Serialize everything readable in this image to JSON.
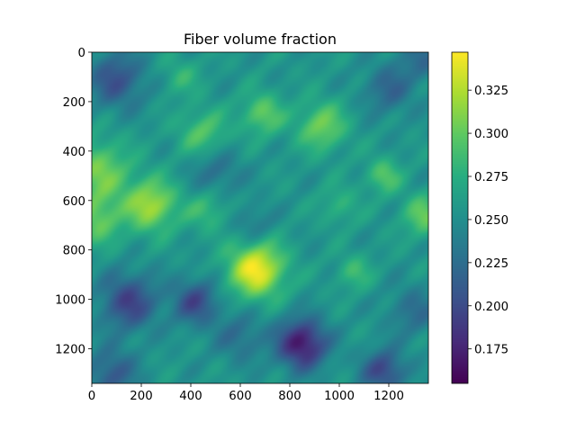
{
  "chart_data": {
    "type": "heatmap",
    "title": "Fiber volume fraction",
    "xlabel": "",
    "ylabel": "",
    "xlim": [
      0,
      1360
    ],
    "ylim": [
      1340,
      0
    ],
    "x_ticks": [
      0,
      200,
      400,
      600,
      800,
      1000,
      1200
    ],
    "y_ticks": [
      0,
      200,
      400,
      600,
      800,
      1000,
      1200
    ],
    "colorbar": {
      "colormap": "viridis",
      "range": [
        0.155,
        0.347
      ],
      "ticks": [
        "0.175",
        "0.200",
        "0.225",
        "0.250",
        "0.275",
        "0.300",
        "0.325"
      ]
    },
    "background_value": 0.255,
    "blobs": [
      {
        "x": 665,
        "y": 880,
        "radius": 80,
        "amplitude": 0.09
      },
      {
        "x": 240,
        "y": 620,
        "radius": 75,
        "amplitude": 0.065
      },
      {
        "x": 30,
        "y": 480,
        "radius": 90,
        "amplitude": 0.05
      },
      {
        "x": 20,
        "y": 680,
        "radius": 70,
        "amplitude": 0.045
      },
      {
        "x": 450,
        "y": 330,
        "radius": 70,
        "amplitude": 0.04
      },
      {
        "x": 690,
        "y": 250,
        "radius": 60,
        "amplitude": 0.045
      },
      {
        "x": 930,
        "y": 300,
        "radius": 70,
        "amplitude": 0.05
      },
      {
        "x": 1340,
        "y": 660,
        "radius": 60,
        "amplitude": 0.045
      },
      {
        "x": 1180,
        "y": 500,
        "radius": 50,
        "amplitude": 0.04
      },
      {
        "x": 1060,
        "y": 890,
        "radius": 50,
        "amplitude": 0.03
      },
      {
        "x": 1000,
        "y": 620,
        "radius": 55,
        "amplitude": 0.025
      },
      {
        "x": 470,
        "y": 640,
        "radius": 60,
        "amplitude": 0.03
      },
      {
        "x": 360,
        "y": 100,
        "radius": 55,
        "amplitude": 0.025
      },
      {
        "x": 850,
        "y": 1180,
        "radius": 70,
        "amplitude": -0.09
      },
      {
        "x": 150,
        "y": 1010,
        "radius": 80,
        "amplitude": -0.06
      },
      {
        "x": 420,
        "y": 1010,
        "radius": 65,
        "amplitude": -0.055
      },
      {
        "x": 1180,
        "y": 1290,
        "radius": 60,
        "amplitude": -0.06
      },
      {
        "x": 100,
        "y": 110,
        "radius": 80,
        "amplitude": -0.05
      },
      {
        "x": 80,
        "y": 1300,
        "radius": 70,
        "amplitude": -0.045
      },
      {
        "x": 1200,
        "y": 150,
        "radius": 70,
        "amplitude": -0.035
      },
      {
        "x": 500,
        "y": 480,
        "radius": 70,
        "amplitude": -0.03
      },
      {
        "x": 1300,
        "y": 1050,
        "radius": 70,
        "amplitude": -0.03
      },
      {
        "x": 600,
        "y": 1150,
        "radius": 70,
        "amplitude": -0.03
      },
      {
        "x": 1330,
        "y": 30,
        "radius": 60,
        "amplitude": -0.03
      },
      {
        "x": 650,
        "y": 700,
        "radius": 55,
        "amplitude": -0.025
      }
    ]
  }
}
